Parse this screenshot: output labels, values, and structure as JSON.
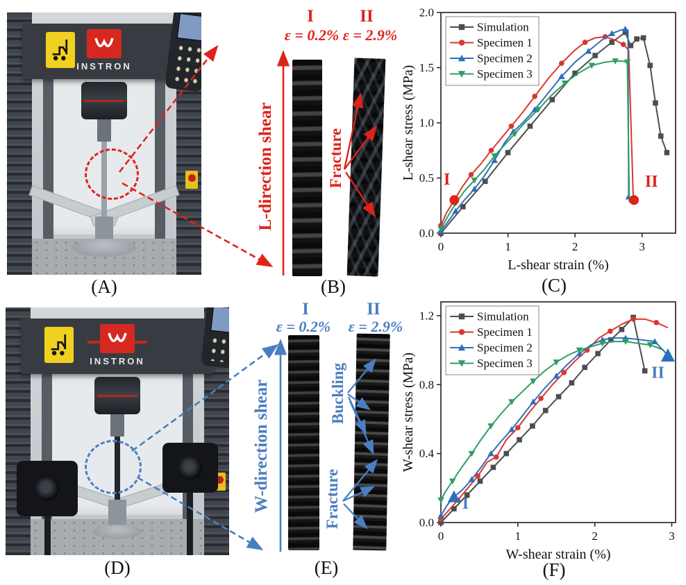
{
  "colors": {
    "annotation_red": "#df2318",
    "annotation_blue": "#4a7ec2",
    "simulation": "#4d4d4d",
    "specimen1": "#d9372e",
    "specimen2": "#2e6fbd",
    "specimen3": "#2f9e63",
    "instron_logo_red": "#d6281e",
    "warning_yellow": "#f0d11f"
  },
  "photos": {
    "a": {
      "brand": "INSTRON",
      "caption": "(A)"
    },
    "d": {
      "brand": "INSTRON",
      "caption": "(D)"
    }
  },
  "panels": {
    "b": {
      "caption": "(B)",
      "numeral_i": "I",
      "numeral_ii": "II",
      "strain_i": "ε = 0.2%",
      "strain_ii": "ε = 2.9%",
      "direction": "L-direction shear",
      "fracture": "Fracture"
    },
    "e": {
      "caption": "(E)",
      "numeral_i": "I",
      "numeral_ii": "II",
      "strain_i": "ε = 0.2%",
      "strain_ii": "ε = 2.9%",
      "direction": "W-direction shear",
      "buckling": "Buckling",
      "fracture": "Fracture"
    },
    "c": {
      "caption": "(C)"
    },
    "f": {
      "caption": "(F)"
    }
  },
  "chart_data": [
    {
      "id": "c",
      "type": "line",
      "title": "",
      "xlabel": "L-shear strain (%)",
      "ylabel": "L-shear stress (MPa)",
      "xlim": [
        0,
        3.5
      ],
      "ylim": [
        0,
        2.0
      ],
      "xticks": [
        {
          "v": 0,
          "t": "0"
        },
        {
          "v": 1,
          "t": "1"
        },
        {
          "v": 2,
          "t": "2"
        },
        {
          "v": 3,
          "t": "3"
        }
      ],
      "yticks": [
        {
          "v": 0.0,
          "t": "0.0"
        },
        {
          "v": 0.5,
          "t": "0.5"
        },
        {
          "v": 1.0,
          "t": "1.0"
        },
        {
          "v": 1.5,
          "t": "1.5"
        },
        {
          "v": 2.0,
          "t": "2.0"
        }
      ],
      "grid": false,
      "legend_position": "top-left",
      "series": [
        {
          "name": "Simulation",
          "color": "#4d4d4d",
          "marker": "square",
          "marker_every": 1,
          "x": [
            0,
            0.33,
            0.66,
            1.0,
            1.33,
            1.66,
            2.0,
            2.3,
            2.55,
            2.75,
            2.83,
            2.92,
            3.02,
            3.12,
            3.2,
            3.28,
            3.37
          ],
          "y": [
            0,
            0.24,
            0.47,
            0.73,
            0.97,
            1.21,
            1.45,
            1.61,
            1.73,
            1.82,
            1.7,
            1.76,
            1.77,
            1.52,
            1.18,
            0.88,
            0.73
          ]
        },
        {
          "name": "Specimen 1",
          "color": "#d9372e",
          "marker": "circle",
          "marker_every": 2,
          "x": [
            0,
            0.08,
            0.2,
            0.32,
            0.45,
            0.6,
            0.75,
            0.9,
            1.05,
            1.2,
            1.4,
            1.6,
            1.8,
            2.0,
            2.15,
            2.3,
            2.45,
            2.6,
            2.72,
            2.8,
            2.87
          ],
          "y": [
            0.07,
            0.18,
            0.3,
            0.42,
            0.53,
            0.63,
            0.75,
            0.86,
            0.97,
            1.08,
            1.24,
            1.4,
            1.54,
            1.66,
            1.73,
            1.77,
            1.78,
            1.75,
            1.71,
            1.66,
            0.3
          ]
        },
        {
          "name": "Specimen 2",
          "color": "#2e6fbd",
          "marker": "triangle-up",
          "marker_every": 2,
          "x": [
            0,
            0.1,
            0.22,
            0.35,
            0.5,
            0.65,
            0.8,
            0.95,
            1.08,
            1.22,
            1.4,
            1.6,
            1.8,
            2.0,
            2.2,
            2.4,
            2.55,
            2.68,
            2.75,
            2.79,
            2.8
          ],
          "y": [
            0.02,
            0.1,
            0.2,
            0.3,
            0.4,
            0.52,
            0.66,
            0.82,
            0.92,
            1.0,
            1.12,
            1.27,
            1.42,
            1.55,
            1.65,
            1.75,
            1.81,
            1.84,
            1.85,
            1.84,
            0.33
          ]
        },
        {
          "name": "Specimen 3",
          "color": "#2f9e63",
          "marker": "triangle-down",
          "marker_every": 2,
          "x": [
            0,
            0.1,
            0.22,
            0.35,
            0.5,
            0.65,
            0.8,
            0.95,
            1.1,
            1.25,
            1.45,
            1.65,
            1.85,
            2.05,
            2.25,
            2.45,
            2.6,
            2.7,
            2.78,
            2.81
          ],
          "y": [
            0.04,
            0.15,
            0.27,
            0.38,
            0.48,
            0.58,
            0.7,
            0.8,
            0.9,
            1.0,
            1.12,
            1.25,
            1.36,
            1.45,
            1.52,
            1.55,
            1.56,
            1.56,
            1.55,
            0.28
          ]
        }
      ],
      "annotations": [
        {
          "text": "I",
          "x": 0.09,
          "y": 0.44,
          "color": "#df2318"
        },
        {
          "marker": "circle",
          "x": 0.2,
          "y": 0.3,
          "size": 7,
          "color": "#df2318"
        },
        {
          "text": "II",
          "x": 3.14,
          "y": 0.42,
          "color": "#df2318"
        },
        {
          "marker": "circle",
          "x": 2.88,
          "y": 0.3,
          "size": 7,
          "color": "#df2318"
        }
      ]
    },
    {
      "id": "f",
      "type": "line",
      "title": "",
      "xlabel": "W-shear strain (%)",
      "ylabel": "W-shear stress (MPa)",
      "xlim": [
        0,
        3.05
      ],
      "ylim": [
        0,
        1.28
      ],
      "xticks": [
        {
          "v": 0,
          "t": "0"
        },
        {
          "v": 1,
          "t": "1"
        },
        {
          "v": 2,
          "t": "2"
        },
        {
          "v": 3,
          "t": "3"
        }
      ],
      "yticks": [
        {
          "v": 0.0,
          "t": "0.0"
        },
        {
          "v": 0.4,
          "t": "0.4"
        },
        {
          "v": 0.8,
          "t": "0.8"
        },
        {
          "v": 1.2,
          "t": "1.2"
        }
      ],
      "grid": false,
      "legend_position": "top-left",
      "series": [
        {
          "name": "Simulation",
          "color": "#4d4d4d",
          "marker": "square",
          "marker_every": 1,
          "x": [
            0,
            0.17,
            0.34,
            0.51,
            0.68,
            0.85,
            1.02,
            1.19,
            1.36,
            1.53,
            1.7,
            1.87,
            2.04,
            2.21,
            2.35,
            2.5,
            2.65
          ],
          "y": [
            0,
            0.08,
            0.16,
            0.24,
            0.32,
            0.4,
            0.48,
            0.56,
            0.65,
            0.73,
            0.81,
            0.9,
            0.98,
            1.06,
            1.12,
            1.19,
            0.88
          ]
        },
        {
          "name": "Specimen 1",
          "color": "#d9372e",
          "marker": "circle",
          "marker_every": 2,
          "x": [
            0,
            0.1,
            0.22,
            0.35,
            0.48,
            0.6,
            0.72,
            0.85,
            1.0,
            1.15,
            1.3,
            1.45,
            1.6,
            1.75,
            1.9,
            2.05,
            2.2,
            2.35,
            2.5,
            2.65,
            2.8,
            2.95
          ],
          "y": [
            0.02,
            0.07,
            0.13,
            0.2,
            0.27,
            0.35,
            0.38,
            0.48,
            0.55,
            0.64,
            0.72,
            0.8,
            0.87,
            0.94,
            1.0,
            1.07,
            1.11,
            1.15,
            1.18,
            1.18,
            1.16,
            1.13
          ]
        },
        {
          "name": "Specimen 2",
          "color": "#2e6fbd",
          "marker": "triangle-up",
          "marker_every": 2,
          "x": [
            0,
            0.08,
            0.17,
            0.28,
            0.4,
            0.52,
            0.65,
            0.78,
            0.92,
            1.06,
            1.2,
            1.35,
            1.5,
            1.65,
            1.8,
            1.95,
            2.1,
            2.25,
            2.4,
            2.6,
            2.78,
            2.95
          ],
          "y": [
            0.04,
            0.1,
            0.15,
            0.19,
            0.25,
            0.32,
            0.4,
            0.47,
            0.54,
            0.62,
            0.7,
            0.78,
            0.85,
            0.92,
            0.98,
            1.03,
            1.06,
            1.07,
            1.07,
            1.06,
            1.05,
            0.97
          ]
        },
        {
          "name": "Specimen 3",
          "color": "#2f9e63",
          "marker": "triangle-down",
          "marker_every": 2,
          "x": [
            0,
            0.06,
            0.15,
            0.27,
            0.4,
            0.52,
            0.65,
            0.78,
            0.92,
            1.06,
            1.2,
            1.35,
            1.5,
            1.65,
            1.8,
            1.95,
            2.1,
            2.25,
            2.4,
            2.55,
            2.72,
            2.9
          ],
          "y": [
            0.13,
            0.18,
            0.24,
            0.32,
            0.4,
            0.48,
            0.56,
            0.63,
            0.7,
            0.76,
            0.82,
            0.88,
            0.93,
            0.97,
            1.0,
            1.02,
            1.04,
            1.05,
            1.05,
            1.04,
            1.03,
            1.0
          ]
        }
      ],
      "annotations": [
        {
          "text": "I",
          "x": 0.32,
          "y": 0.08,
          "color": "#4a7ec2"
        },
        {
          "marker": "triangle-up",
          "x": 0.17,
          "y": 0.15,
          "size": 8,
          "color": "#2e6fbd"
        },
        {
          "text": "II",
          "x": 2.82,
          "y": 0.84,
          "color": "#4a7ec2"
        },
        {
          "marker": "triangle-up",
          "x": 2.95,
          "y": 0.97,
          "size": 9,
          "color": "#2e6fbd"
        }
      ]
    }
  ]
}
